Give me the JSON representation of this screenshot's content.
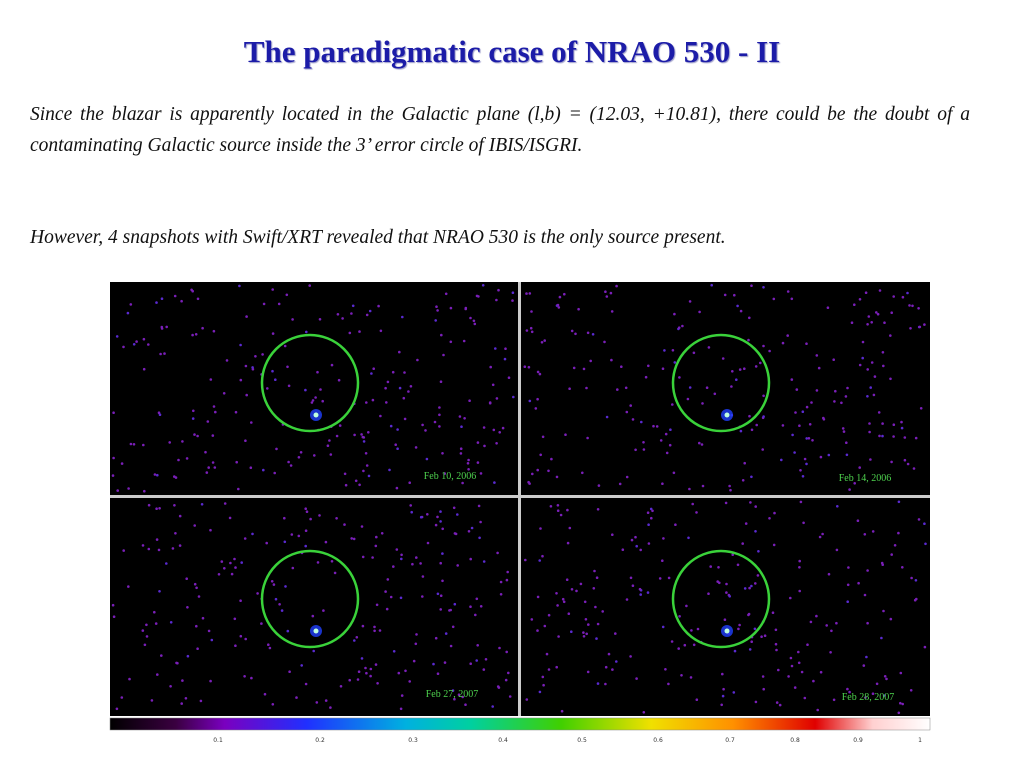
{
  "title": "The paradigmatic case of NRAO 530 - II",
  "paragraphs": [
    "Since the blazar is apparently located in the Galactic plane (l,b) = (12.03, +10.81), there could be the doubt of a contaminating Galactic source inside the 3’ error circle of IBIS/ISGRI.",
    "However, 4 snapshots with Swift/XRT revealed that NRAO 530 is the only source present."
  ],
  "panels": [
    {
      "date": "Feb 10, 2006"
    },
    {
      "date": "Feb 14, 2006"
    },
    {
      "date": "Feb 27, 2007"
    },
    {
      "date": "Feb 28, 2007"
    }
  ],
  "colorbar": {
    "ticks": [
      "0.1",
      "0.2",
      "0.3",
      "0.4",
      "0.5",
      "0.6",
      "0.7",
      "0.8",
      "0.9",
      "1"
    ]
  }
}
